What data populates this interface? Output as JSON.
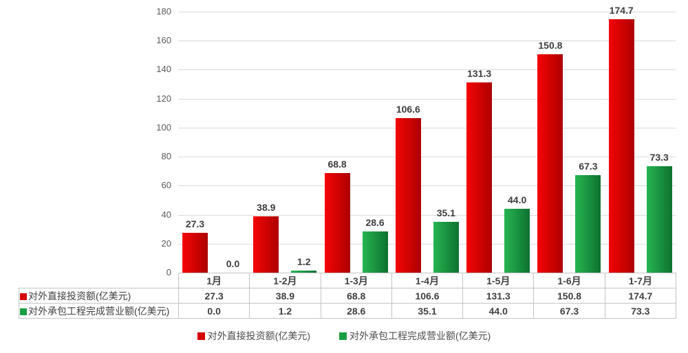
{
  "chart_data": {
    "type": "bar",
    "title": "",
    "xlabel": "",
    "ylabel": "",
    "categories": [
      "1月",
      "1-2月",
      "1-3月",
      "1-4月",
      "1-5月",
      "1-6月",
      "1-7月"
    ],
    "series": [
      {
        "name": "对外直接投资额(亿美元)",
        "values": [
          27.3,
          38.9,
          68.8,
          106.6,
          131.3,
          150.8,
          174.7
        ],
        "swatch_color": "#d40000",
        "bar_gradient_start": "#f50505",
        "bar_gradient_end": "#ad0000"
      },
      {
        "name": "对外承包工程完成营业额(亿美元)",
        "values": [
          0.0,
          1.2,
          28.6,
          35.1,
          44.0,
          67.3,
          73.3
        ],
        "swatch_color": "#1a9e43",
        "bar_gradient_start": "#27b551",
        "bar_gradient_end": "#0d7130"
      }
    ],
    "ylim": [
      0,
      180
    ],
    "ytick_step": 20,
    "ytick_labels": [
      "0",
      "20",
      "40",
      "60",
      "80",
      "100",
      "120",
      "140",
      "160",
      "180"
    ],
    "grid": true,
    "gridline_color": "#d9d9d9",
    "legend_position": "bottom",
    "show_data_table": true,
    "value_decimals": 1
  }
}
